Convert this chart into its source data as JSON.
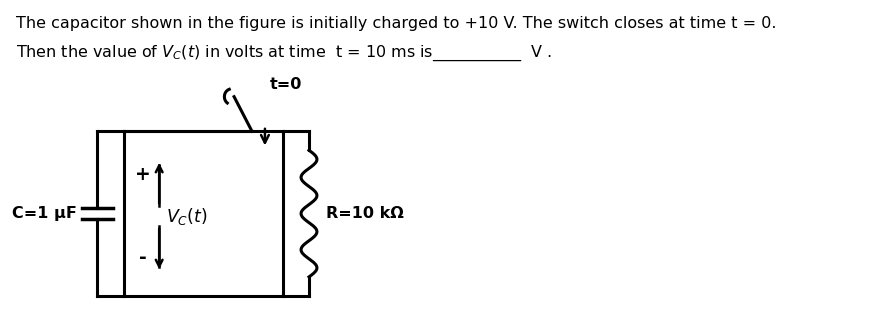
{
  "text_line1": "The capacitor shown in the figure is initially charged to +10 V. The switch closes at time t = 0.",
  "text_line2": "Then the value of $V_C(t)$ in volts at time  t = 10 ms is___________  V .",
  "background_color": "#ffffff",
  "text_color": "#000000",
  "text_fontsize": 11.5,
  "circuit": {
    "capacitor_label": "C=1 μF",
    "vc_label": "$V_C(t)$",
    "resistor_label": "R=10 kΩ",
    "switch_label": "t=0",
    "plus_label": "+",
    "minus_label": "-"
  }
}
